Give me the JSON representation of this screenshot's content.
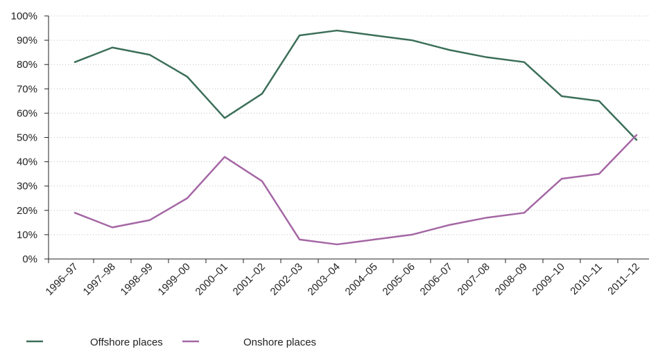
{
  "chart_data": {
    "type": "line",
    "title": "",
    "xlabel": "",
    "ylabel": "",
    "categories": [
      "1996–97",
      "1997–98",
      "1998–99",
      "1999–00",
      "2000–01",
      "2001–02",
      "2002–03",
      "2003–04",
      "2004–05",
      "2005–06",
      "2006–07",
      "2007–08",
      "2008–09",
      "2009–10",
      "2010–11",
      "2011–12"
    ],
    "ylim": [
      0,
      100
    ],
    "yticks": [
      0,
      10,
      20,
      30,
      40,
      50,
      60,
      70,
      80,
      90,
      100
    ],
    "ytick_labels": [
      "0%",
      "10%",
      "20%",
      "30%",
      "40%",
      "50%",
      "60%",
      "70%",
      "80%",
      "90%",
      "100%"
    ],
    "grid": "horizontal dotted",
    "legend_position": "bottom-left",
    "series": [
      {
        "name": "Offshore places",
        "color": "#3b6e58",
        "values": [
          81,
          87,
          84,
          75,
          58,
          68,
          92,
          94,
          92,
          90,
          86,
          83,
          81,
          67,
          65,
          49
        ]
      },
      {
        "name": "Onshore places",
        "color": "#a466a4",
        "values": [
          19,
          13,
          16,
          25,
          42,
          32,
          8,
          6,
          8,
          10,
          14,
          17,
          19,
          33,
          35,
          51
        ]
      }
    ]
  }
}
